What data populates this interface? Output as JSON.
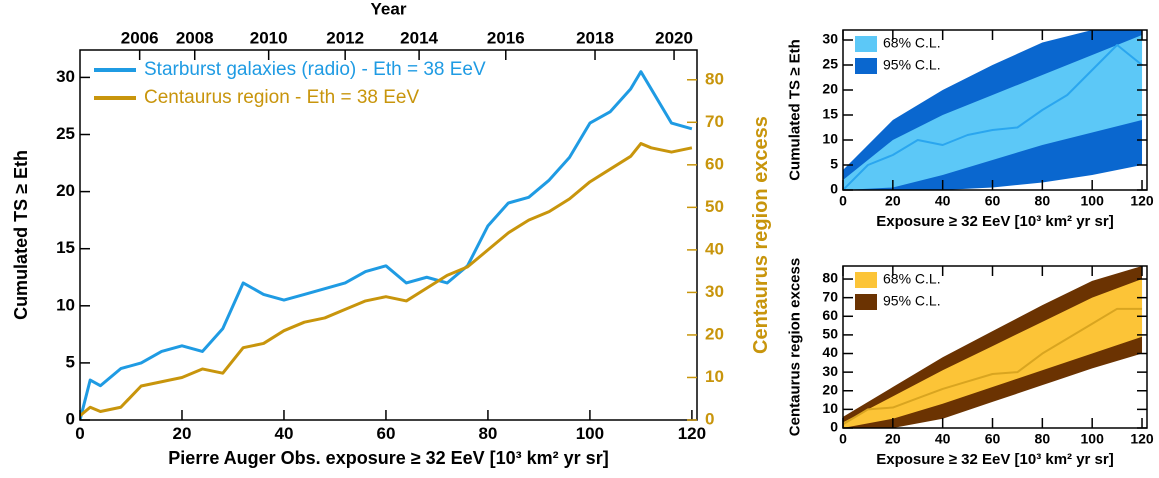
{
  "chart_data": [
    {
      "type": "line",
      "x2label": "Year",
      "x2ticks": [
        {
          "value": 11.7,
          "label": "2006"
        },
        {
          "value": 22.5,
          "label": "2008"
        },
        {
          "value": 37,
          "label": "2010"
        },
        {
          "value": 52,
          "label": "2012"
        },
        {
          "value": 66.5,
          "label": "2014"
        },
        {
          "value": 83.5,
          "label": "2016"
        },
        {
          "value": 101,
          "label": "2018"
        },
        {
          "value": 116.5,
          "label": "2020"
        }
      ],
      "xlabel": "Pierre Auger Obs. exposure ≥ 32 EeV  [10³ km² yr sr]",
      "ylabel": "Cumulated TS ≥ Eth",
      "y2label": "Centaurus region excess",
      "xlim": [
        0,
        121
      ],
      "xticks": [
        0,
        20,
        40,
        60,
        80,
        100,
        120
      ],
      "ylim": [
        0,
        32.4
      ],
      "yticks": [
        0,
        5,
        10,
        15,
        20,
        25,
        30
      ],
      "y2lim": [
        0,
        87
      ],
      "y2ticks": [
        0,
        10,
        20,
        30,
        40,
        50,
        60,
        70,
        80
      ],
      "legend": "upper left",
      "x": [
        0,
        2,
        4,
        8,
        12,
        16,
        20,
        24,
        28,
        32,
        36,
        40,
        44,
        48,
        52,
        56,
        60,
        64,
        68,
        72,
        76,
        80,
        84,
        88,
        92,
        96,
        100,
        104,
        108,
        110,
        112,
        116,
        120
      ],
      "series": [
        {
          "name": "Starburst galaxies (radio) - Eth = 38 EeV",
          "color": "#1f9be3",
          "values": [
            0,
            3.5,
            3,
            4.5,
            5,
            6,
            6.5,
            6,
            8,
            12,
            11,
            10.5,
            11,
            11.5,
            12,
            13,
            13.5,
            12,
            12.5,
            12,
            13.5,
            17,
            19,
            19.5,
            21,
            23,
            26,
            27,
            29,
            30.5,
            29,
            26,
            25.5
          ]
        },
        {
          "name": "Centaurus region - Eth = 38 EeV",
          "color": "#c8950c",
          "axis": "y2",
          "values": [
            1,
            3,
            2,
            3,
            8,
            9,
            10,
            12,
            11,
            17,
            18,
            21,
            23,
            24,
            26,
            28,
            29,
            28,
            31,
            34,
            36,
            40,
            44,
            47,
            49,
            52,
            56,
            59,
            62,
            65,
            64,
            63,
            64
          ]
        }
      ]
    },
    {
      "type": "band",
      "xlabel": "Exposure ≥ 32 EeV  [10³ km² yr sr]",
      "ylabel": "Cumulated TS ≥ Eth",
      "xlim": [
        0,
        122
      ],
      "xticks": [
        0,
        20,
        40,
        60,
        80,
        100,
        120
      ],
      "ylim": [
        0,
        32
      ],
      "yticks": [
        0,
        5,
        10,
        15,
        20,
        25,
        30
      ],
      "legend": "upper left",
      "band_x": [
        0,
        20,
        40,
        60,
        80,
        100,
        120
      ],
      "bands": [
        {
          "name": "68% C.L.",
          "color": "#5cc8f7",
          "low": [
            0,
            0.5,
            3,
            6,
            9,
            11.5,
            14
          ],
          "high": [
            2,
            10,
            15,
            19,
            23,
            27,
            31
          ]
        },
        {
          "name": "95% C.L.",
          "color": "#0a67cf",
          "low": [
            0,
            0,
            0,
            0.5,
            1.5,
            3,
            5
          ],
          "high": [
            4,
            14,
            20,
            25,
            29.5,
            32,
            32
          ]
        }
      ],
      "x": [
        0,
        10,
        20,
        30,
        40,
        50,
        60,
        70,
        80,
        90,
        100,
        110,
        120
      ],
      "series": [
        {
          "color": "#2aa6ef",
          "values": [
            0,
            5,
            7,
            10,
            9,
            11,
            12,
            12.5,
            16,
            19,
            24,
            29,
            25
          ]
        }
      ]
    },
    {
      "type": "band",
      "xlabel": "Exposure ≥ 32 EeV  [10³ km² yr sr]",
      "ylabel": "Centaurus region excess",
      "xlim": [
        0,
        122
      ],
      "xticks": [
        0,
        20,
        40,
        60,
        80,
        100,
        120
      ],
      "ylim": [
        0,
        87
      ],
      "yticks": [
        0,
        10,
        20,
        30,
        40,
        50,
        60,
        70,
        80
      ],
      "legend": "upper left",
      "band_x": [
        0,
        20,
        40,
        60,
        80,
        100,
        120
      ],
      "bands": [
        {
          "name": "68% C.L.",
          "color": "#fcc437",
          "low": [
            0,
            5,
            13,
            22,
            31,
            40,
            49
          ],
          "high": [
            3,
            17,
            31,
            44,
            57,
            70,
            80
          ]
        },
        {
          "name": "95% C.L.",
          "color": "#6b3302",
          "low": [
            0,
            0,
            5,
            14,
            23,
            32,
            40
          ],
          "high": [
            6,
            22,
            38,
            52,
            66,
            79,
            87
          ]
        }
      ],
      "x": [
        0,
        10,
        20,
        30,
        40,
        50,
        60,
        70,
        80,
        90,
        100,
        110,
        120
      ],
      "series": [
        {
          "color": "#d9a520",
          "values": [
            2,
            10,
            11,
            16,
            21,
            25,
            29,
            30,
            40,
            48,
            56,
            64,
            64
          ]
        }
      ]
    }
  ]
}
